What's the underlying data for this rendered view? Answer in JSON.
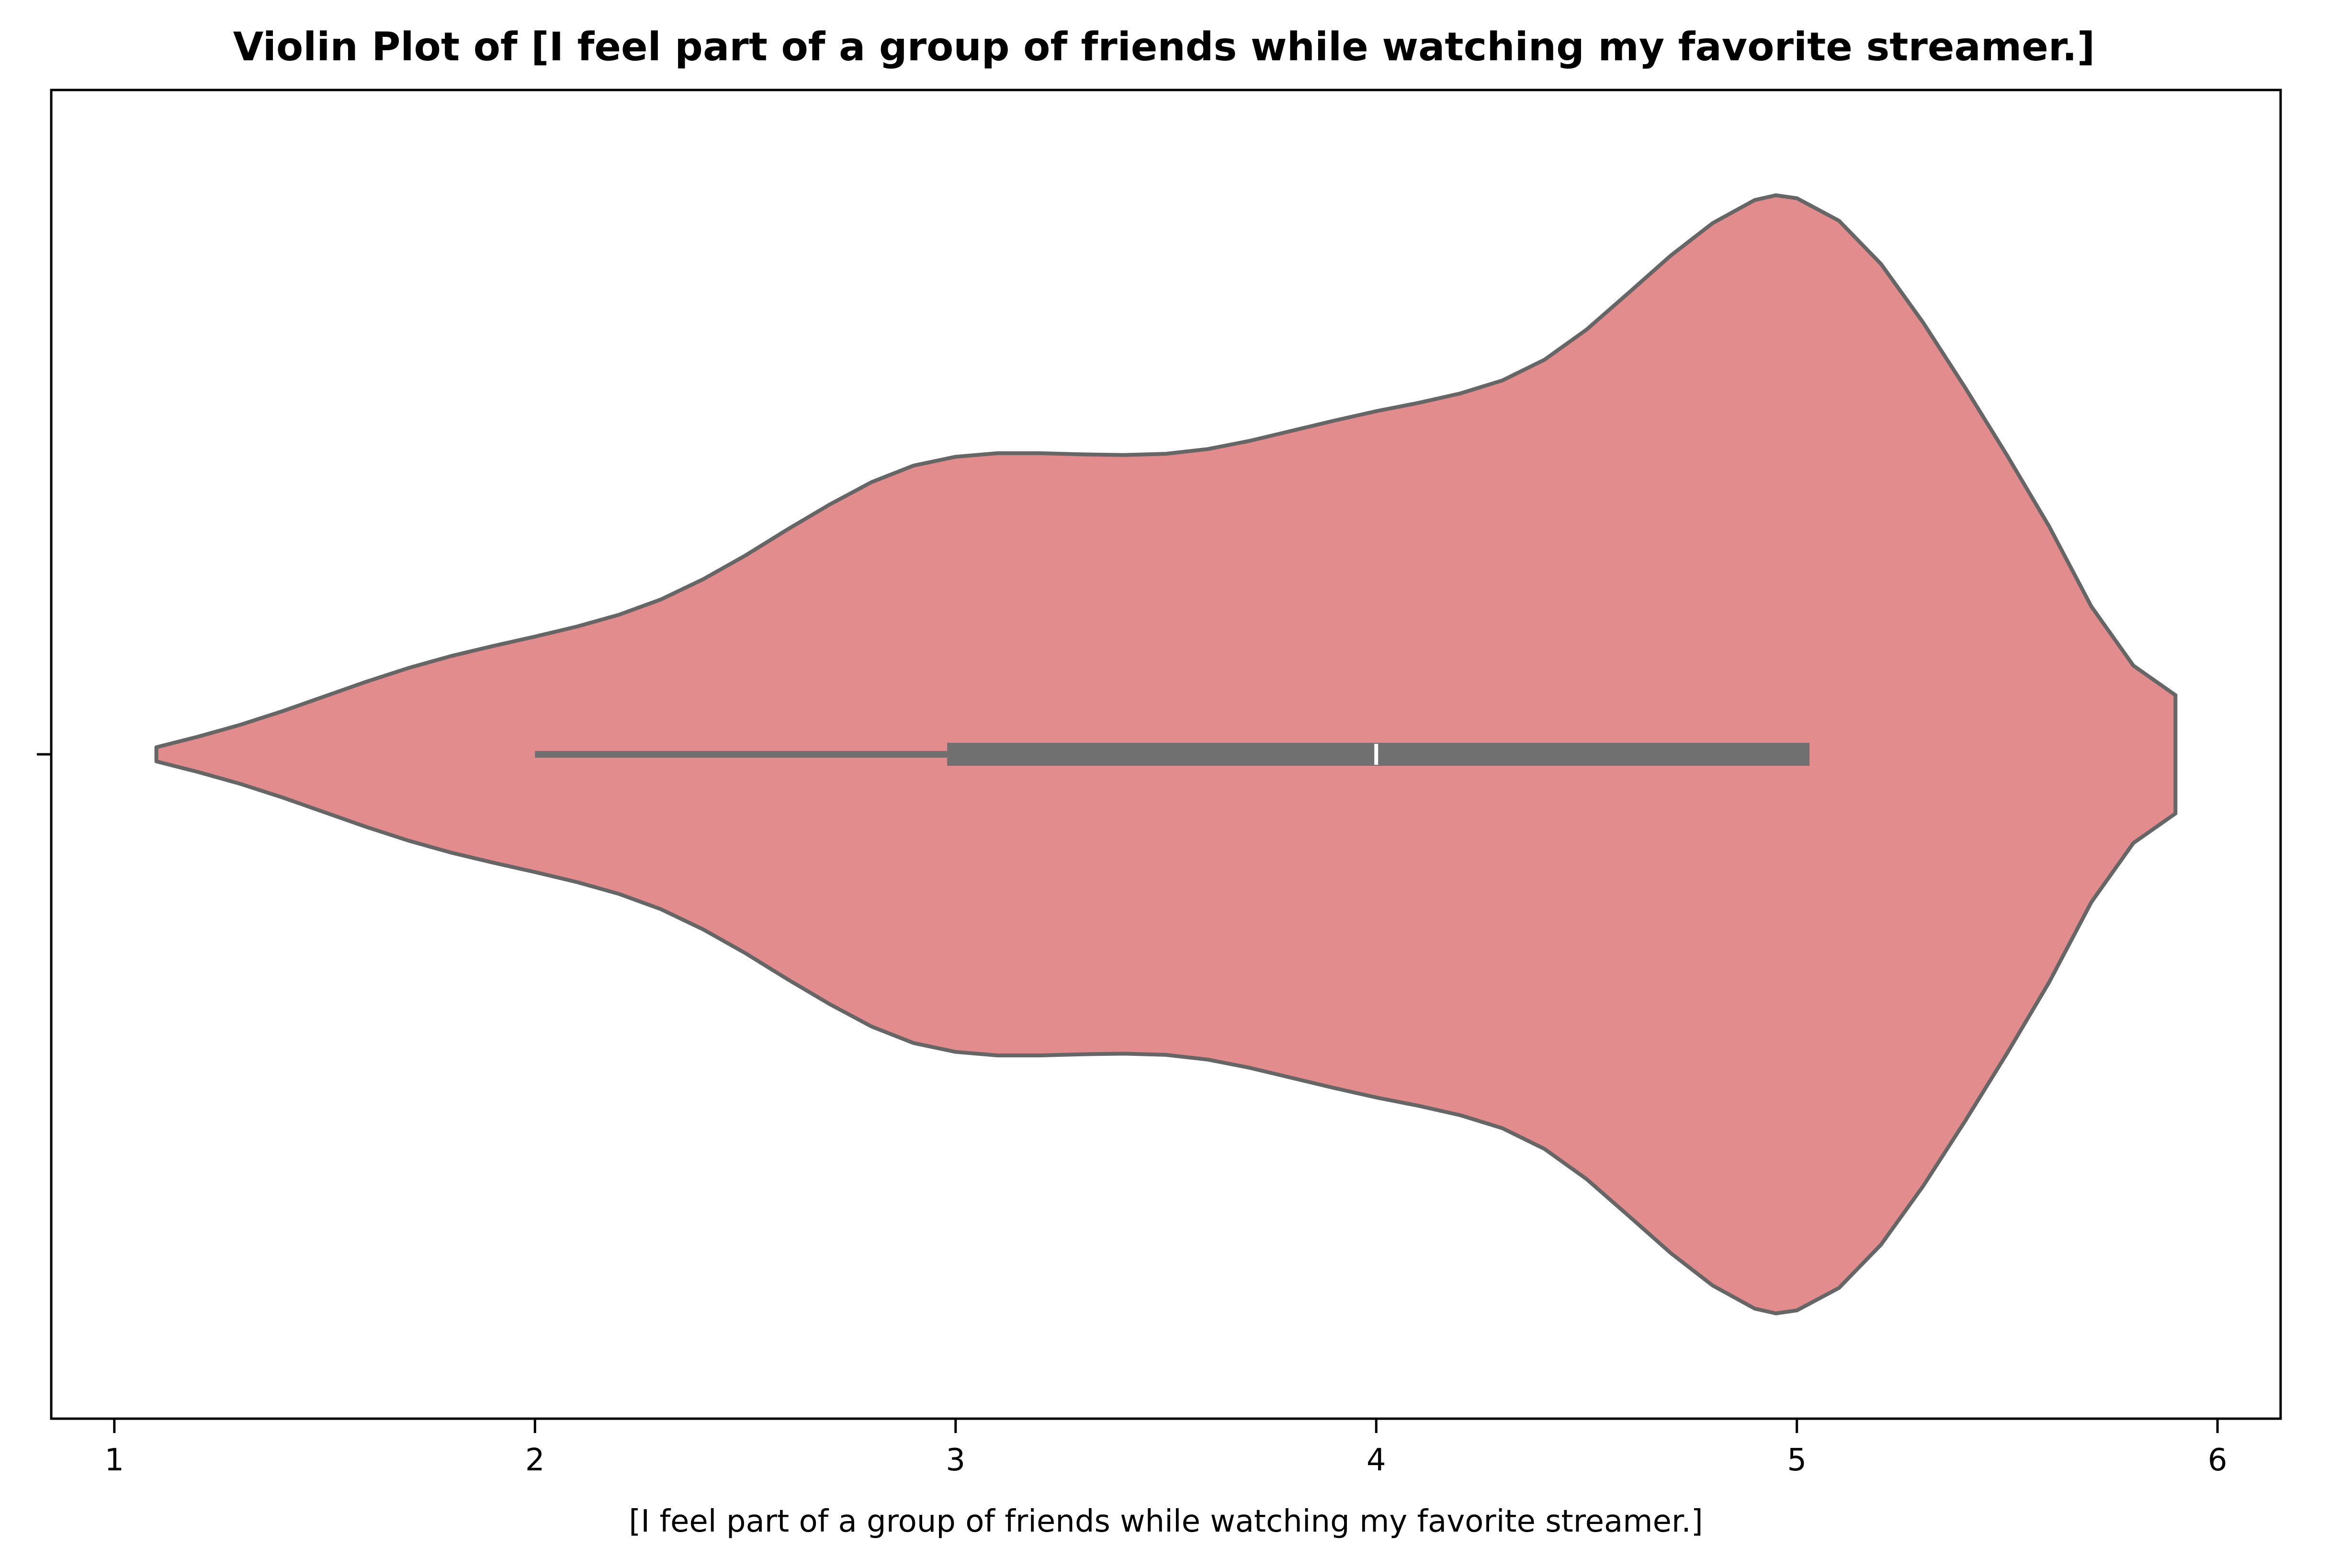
{
  "chart_data": {
    "type": "violin",
    "title": "Violin Plot of [I feel part of a group of friends while watching my favorite streamer.]",
    "xlabel": "[I feel part of a group of friends while watching my favorite streamer.]",
    "ylabel": "",
    "xlim": [
      0.85,
      6.15
    ],
    "x_ticks": [
      1,
      2,
      3,
      4,
      5,
      6
    ],
    "x_tick_labels": [
      "1",
      "2",
      "3",
      "4",
      "5",
      "6"
    ],
    "grid": false,
    "legend": "none",
    "colors": {
      "violin_fill": "#e28c8d",
      "outline": "#666666",
      "box": "#707070",
      "median_marker": "#ffffff"
    },
    "density": {
      "x": [
        1.1,
        1.2,
        1.3,
        1.4,
        1.5,
        1.6,
        1.7,
        1.8,
        1.9,
        2.0,
        2.1,
        2.2,
        2.3,
        2.4,
        2.5,
        2.6,
        2.7,
        2.8,
        2.9,
        3.0,
        3.1,
        3.2,
        3.3,
        3.4,
        3.5,
        3.6,
        3.7,
        3.8,
        3.9,
        4.0,
        4.1,
        4.2,
        4.3,
        4.4,
        4.5,
        4.6,
        4.7,
        4.8,
        4.9,
        4.95,
        5.0,
        5.1,
        5.2,
        5.3,
        5.4,
        5.5,
        5.6,
        5.7,
        5.8,
        5.9
      ],
      "width": [
        0.012,
        0.03,
        0.05,
        0.073,
        0.098,
        0.123,
        0.146,
        0.166,
        0.183,
        0.199,
        0.216,
        0.236,
        0.262,
        0.296,
        0.336,
        0.38,
        0.422,
        0.46,
        0.488,
        0.503,
        0.509,
        0.509,
        0.507,
        0.506,
        0.508,
        0.516,
        0.53,
        0.547,
        0.564,
        0.58,
        0.594,
        0.61,
        0.632,
        0.667,
        0.718,
        0.78,
        0.843,
        0.898,
        0.937,
        0.945,
        0.94,
        0.902,
        0.829,
        0.73,
        0.62,
        0.505,
        0.385,
        0.25,
        0.15,
        0.1
      ]
    },
    "box": {
      "whisker_low": 2.0,
      "q1": 2.98,
      "median": 4.0,
      "q3": 5.03,
      "whisker_high": 5.03
    }
  }
}
